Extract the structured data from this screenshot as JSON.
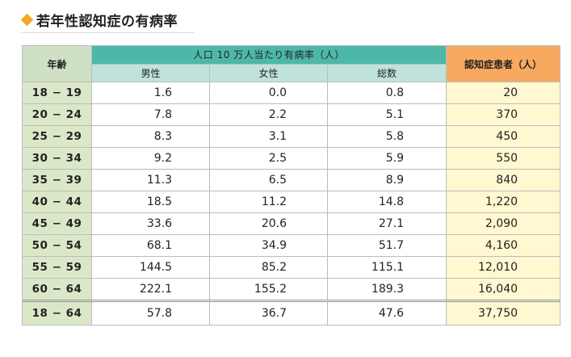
{
  "title": "若年性認知症の有病率",
  "table": {
    "age_header": "年齢",
    "rate_header": "人口 10 万人当たり有病率（人）",
    "patients_header": "認知症患者（人）",
    "sub_headers": [
      "男性",
      "女性",
      "総数"
    ],
    "rows": [
      {
        "age": "18 − 19",
        "male": "1.6",
        "female": "0.0",
        "total": "0.8",
        "patients": "20"
      },
      {
        "age": "20 − 24",
        "male": "7.8",
        "female": "2.2",
        "total": "5.1",
        "patients": "370"
      },
      {
        "age": "25 − 29",
        "male": "8.3",
        "female": "3.1",
        "total": "5.8",
        "patients": "450"
      },
      {
        "age": "30 − 34",
        "male": "9.2",
        "female": "2.5",
        "total": "5.9",
        "patients": "550"
      },
      {
        "age": "35 − 39",
        "male": "11.3",
        "female": "6.5",
        "total": "8.9",
        "patients": "840"
      },
      {
        "age": "40 − 44",
        "male": "18.5",
        "female": "11.2",
        "total": "14.8",
        "patients": "1,220"
      },
      {
        "age": "45 − 49",
        "male": "33.6",
        "female": "20.6",
        "total": "27.1",
        "patients": "2,090"
      },
      {
        "age": "50 − 54",
        "male": "68.1",
        "female": "34.9",
        "total": "51.7",
        "patients": "4,160"
      },
      {
        "age": "55 − 59",
        "male": "144.5",
        "female": "85.2",
        "total": "115.1",
        "patients": "12,010"
      },
      {
        "age": "60 − 64",
        "male": "222.1",
        "female": "155.2",
        "total": "189.3",
        "patients": "16,040"
      }
    ],
    "total_row": {
      "age": "18 − 64",
      "male": "57.8",
      "female": "36.7",
      "total": "47.6",
      "patients": "37,750"
    }
  }
}
